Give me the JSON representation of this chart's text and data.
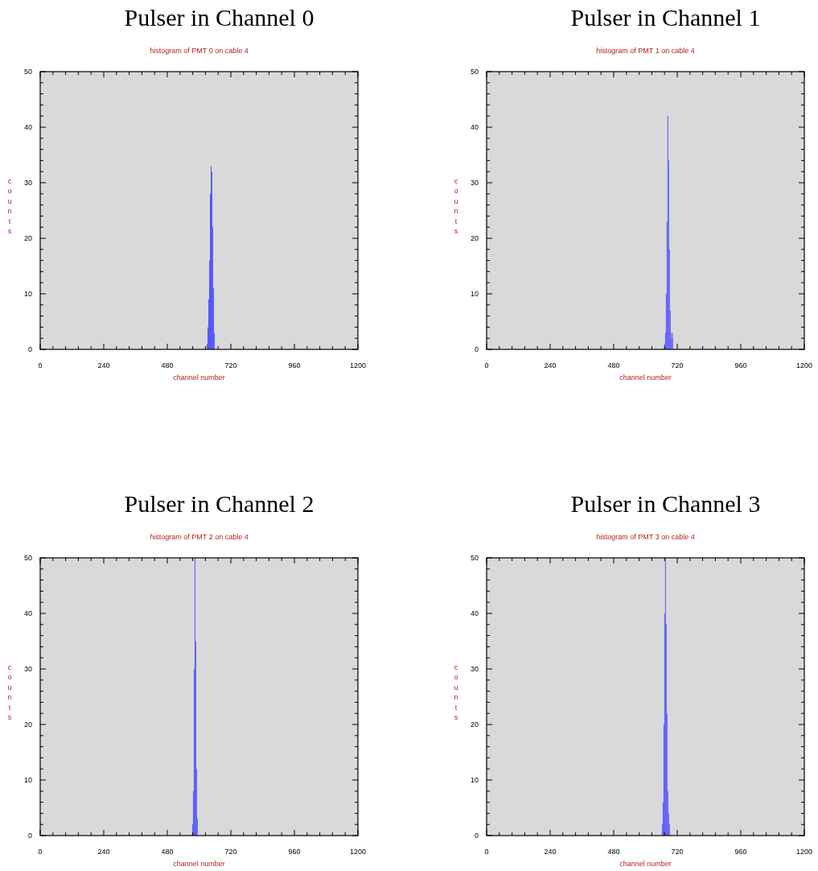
{
  "chart_data": [
    {
      "type": "histogram",
      "title": "Pulser in Channel 0",
      "subtitle": "histogram of PMT 0 on cable 4",
      "xlabel": "channel number",
      "ylabel": "counts",
      "color": "#5555ff",
      "bins": [
        629,
        632,
        635,
        638,
        641,
        644,
        647,
        650,
        653,
        656,
        659
      ],
      "values": [
        1,
        4,
        9,
        16,
        28,
        33,
        32,
        22,
        11,
        3
      ],
      "xlim": [
        0,
        1200
      ],
      "xticks": [
        0,
        240,
        480,
        720,
        960,
        1200
      ],
      "ylim": [
        0,
        50
      ],
      "yticks": [
        0,
        10,
        20,
        30,
        40,
        50
      ],
      "grid": false
    },
    {
      "type": "histogram",
      "title": "Pulser in Channel 1",
      "subtitle": "histogram of PMT 1 on cable 4",
      "xlabel": "channel number",
      "ylabel": "counts",
      "color": "#5555ff",
      "bins": [
        671,
        674,
        677,
        680,
        683,
        686,
        689,
        692,
        695,
        698,
        701,
        704
      ],
      "values": [
        1,
        3,
        10,
        23,
        42,
        34,
        18,
        7,
        3,
        2,
        3
      ],
      "xlim": [
        0,
        1200
      ],
      "xticks": [
        0,
        240,
        480,
        720,
        960,
        1200
      ],
      "ylim": [
        0,
        50
      ],
      "yticks": [
        0,
        10,
        20,
        30,
        40,
        50
      ],
      "grid": false
    },
    {
      "type": "histogram",
      "title": "Pulser in Channel 2",
      "subtitle": "histogram of PMT 2 on cable 4",
      "xlabel": "channel number",
      "ylabel": "counts",
      "color": "#5555ff",
      "bins": [
        574,
        577,
        580,
        583,
        586,
        589,
        592,
        595
      ],
      "values": [
        2,
        8,
        30,
        50,
        35,
        12,
        3
      ],
      "xlim": [
        0,
        1200
      ],
      "xticks": [
        0,
        240,
        480,
        720,
        960,
        1200
      ],
      "ylim": [
        0,
        50
      ],
      "yticks": [
        0,
        10,
        20,
        30,
        40,
        50
      ],
      "grid": false
    },
    {
      "type": "histogram",
      "title": "Pulser in Channel 3",
      "subtitle": "histogram of PMT 3 on cable 4",
      "xlabel": "channel number",
      "ylabel": "counts",
      "color": "#5555ff",
      "bins": [
        662,
        665,
        668,
        671,
        674,
        677,
        680,
        683,
        686,
        689,
        692
      ],
      "values": [
        2,
        6,
        20,
        40,
        50,
        38,
        22,
        8,
        4,
        2
      ],
      "xlim": [
        0,
        1200
      ],
      "xticks": [
        0,
        240,
        480,
        720,
        960,
        1200
      ],
      "ylim": [
        0,
        50
      ],
      "yticks": [
        0,
        10,
        20,
        30,
        40,
        50
      ],
      "grid": false
    }
  ]
}
